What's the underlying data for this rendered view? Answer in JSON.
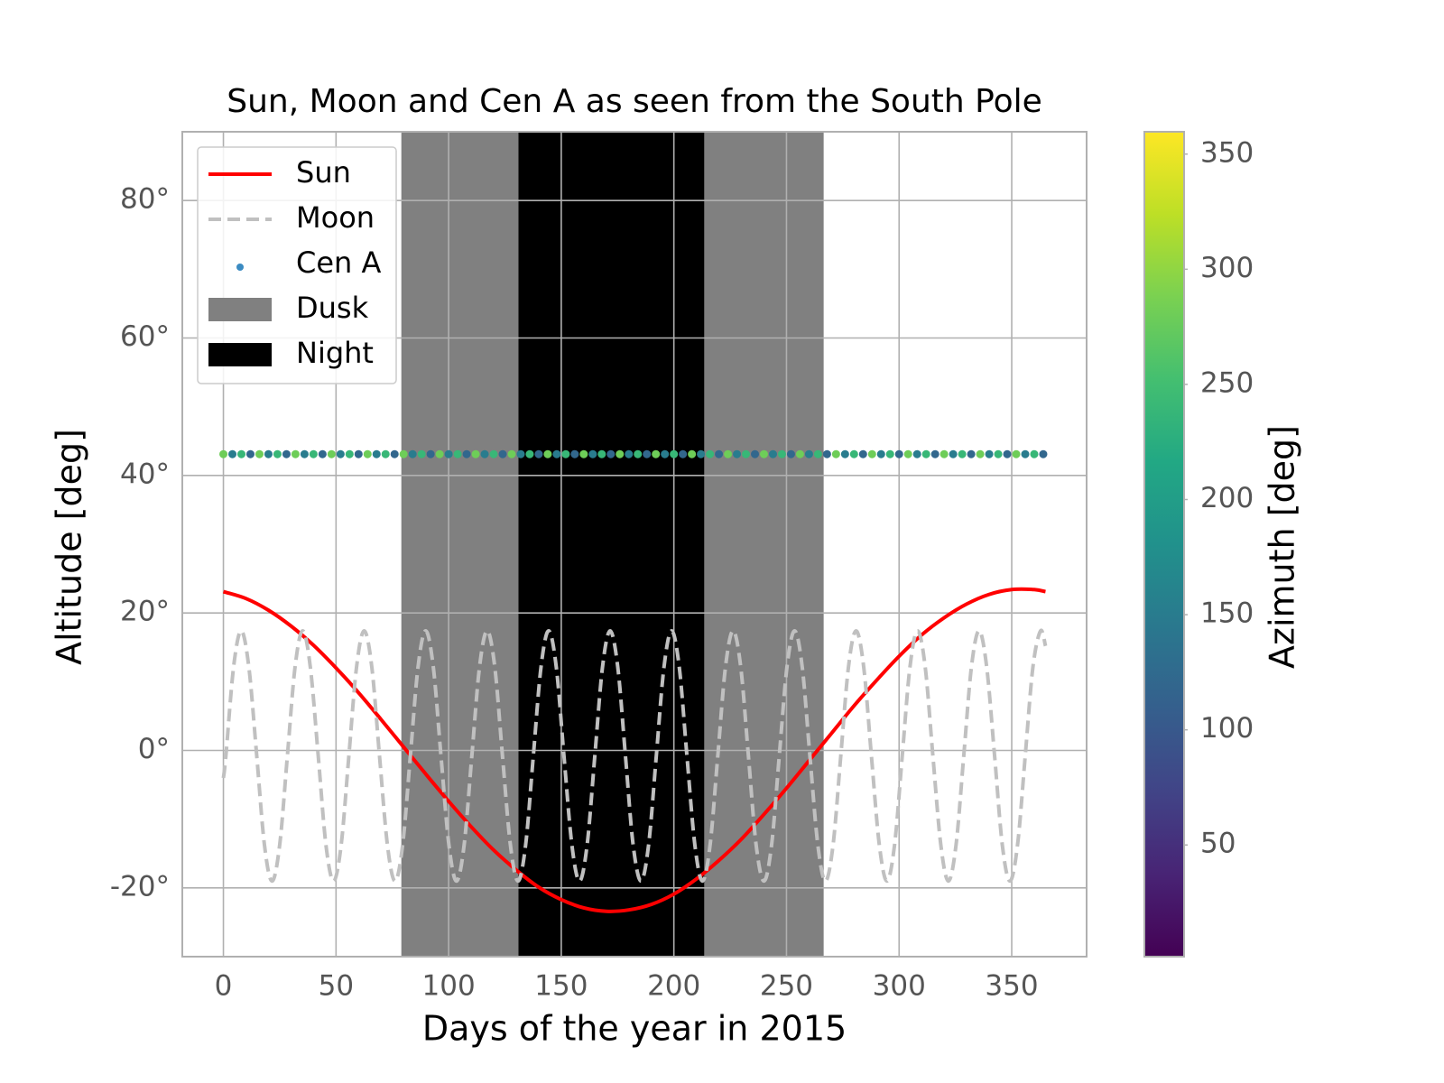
{
  "chart_data": {
    "type": "line",
    "title": "Sun, Moon and Cen A as seen from the South Pole",
    "xlabel": "Days of the year in 2015",
    "ylabel": "Altitude [deg]",
    "xlim": [
      -18.25,
      383.25
    ],
    "xticks": [
      0,
      50,
      100,
      150,
      200,
      250,
      300,
      350
    ],
    "ylim": [
      -30,
      90
    ],
    "yticks": [
      {
        "value": -20,
        "label": "-20°"
      },
      {
        "value": 0,
        "label": "0°"
      },
      {
        "value": 20,
        "label": "20°"
      },
      {
        "value": 40,
        "label": "40°"
      },
      {
        "value": 60,
        "label": "60°"
      },
      {
        "value": 80,
        "label": "80°"
      }
    ],
    "grid": true,
    "legend": "upper left",
    "regions": [
      {
        "name": "Dusk",
        "color": "#808080",
        "spans": [
          [
            79,
            131
          ],
          [
            213.5,
            266.5
          ]
        ]
      },
      {
        "name": "Night",
        "color": "#000000",
        "spans": [
          [
            131,
            213.5
          ]
        ]
      }
    ],
    "series": [
      {
        "name": "Sun",
        "color": "#ff0000",
        "style": "solid",
        "x": [
          0,
          10,
          20,
          30,
          40,
          50,
          60,
          70,
          80,
          90,
          100,
          110,
          120,
          130,
          140,
          150,
          160,
          170,
          180,
          190,
          200,
          210,
          220,
          230,
          240,
          250,
          260,
          270,
          280,
          290,
          300,
          310,
          320,
          330,
          340,
          350,
          360,
          365
        ],
        "values": [
          23.1,
          22.1,
          20.4,
          18.1,
          15.3,
          12.0,
          8.4,
          4.5,
          0.5,
          -3.5,
          -7.4,
          -11.1,
          -14.5,
          -17.4,
          -19.9,
          -21.7,
          -22.9,
          -23.4,
          -23.2,
          -22.4,
          -20.9,
          -18.7,
          -16.0,
          -12.9,
          -9.3,
          -5.5,
          -1.5,
          2.5,
          6.5,
          10.2,
          13.7,
          16.8,
          19.3,
          21.3,
          22.7,
          23.4,
          23.4,
          23.1
        ]
      },
      {
        "name": "Moon",
        "color": "#c0c0c0",
        "style": "dashed",
        "x": [
          0,
          1.1,
          4.5,
          7.9,
          11.3,
          14.8,
          18.2,
          21.6,
          25.0,
          28.4,
          31.8,
          35.2,
          38.6,
          42.1,
          45.5,
          48.9,
          52.3,
          55.7,
          59.1,
          62.5,
          65.9,
          69.3,
          72.8,
          76.2,
          79.6,
          83.0,
          86.4,
          89.8,
          93.2,
          96.6,
          100.1,
          103.5,
          106.9,
          110.3,
          113.7,
          117.1,
          120.5,
          123.9,
          127.4,
          130.8,
          134.2,
          137.6,
          141.0,
          144.4,
          147.8,
          151.2,
          154.7,
          158.1,
          161.5,
          164.9,
          168.3,
          171.7,
          175.1,
          178.5,
          181.9,
          185.4,
          188.8,
          192.2,
          195.6,
          199.0,
          202.4,
          205.8,
          209.3,
          212.7,
          216.1,
          219.5,
          222.9,
          226.3,
          229.7,
          233.1,
          236.5,
          240.0,
          243.4,
          246.8,
          250.2,
          253.6,
          257.0,
          260.4,
          263.9,
          267.3,
          270.7,
          274.1,
          277.5,
          280.9,
          284.3,
          287.7,
          291.2,
          294.6,
          298.0,
          301.4,
          304.8,
          308.2,
          311.6,
          315.0,
          318.5,
          321.9,
          325.3,
          328.7,
          332.1,
          335.5,
          338.9,
          342.4,
          345.8,
          349.2,
          352.6,
          356.0,
          359.4,
          362.8,
          365
        ],
        "values": [
          -4,
          -0.8,
          12.1,
          17.4,
          12.1,
          -0.8,
          -13.7,
          -19,
          -13.7,
          -0.8,
          12.1,
          17.4,
          12.1,
          -0.8,
          -13.7,
          -19,
          -13.7,
          -0.8,
          12.1,
          17.4,
          12.1,
          -0.8,
          -13.7,
          -19,
          -13.7,
          -0.8,
          12.1,
          17.4,
          12.1,
          -0.8,
          -13.7,
          -19,
          -13.7,
          -0.8,
          12.1,
          17.4,
          12.1,
          -0.8,
          -13.7,
          -19,
          -13.7,
          -0.8,
          12.1,
          17.4,
          12.1,
          -0.8,
          -13.7,
          -19,
          -13.7,
          -0.8,
          12.1,
          17.4,
          12.1,
          -0.8,
          -13.7,
          -19,
          -13.7,
          -0.8,
          12.1,
          17.4,
          12.1,
          -0.8,
          -13.7,
          -19,
          -13.7,
          -0.8,
          12.1,
          17.4,
          12.1,
          -0.8,
          -13.7,
          -19,
          -13.7,
          -0.8,
          12.1,
          17.4,
          12.1,
          -0.8,
          -13.7,
          -19,
          -13.7,
          -0.8,
          12.1,
          17.4,
          12.1,
          -0.8,
          -13.7,
          -19,
          -13.7,
          -0.8,
          12.1,
          17.4,
          12.1,
          -0.8,
          -13.7,
          -19,
          -13.7,
          -0.8,
          12.1,
          17.4,
          12.1,
          -0.8,
          -13.7,
          -19,
          -13.7,
          -0.8,
          12.1,
          17.4,
          15.2
        ]
      },
      {
        "name": "Cen A",
        "type": "scatter",
        "color": "#3b8bc2",
        "x": [
          0,
          4,
          8,
          12,
          16,
          20,
          24,
          28,
          32,
          36,
          40,
          44,
          48,
          52,
          56,
          60,
          64,
          68,
          72,
          76,
          80,
          84,
          88,
          92,
          96,
          100,
          104,
          108,
          112,
          116,
          120,
          124,
          128,
          132,
          136,
          140,
          144,
          148,
          152,
          156,
          160,
          164,
          168,
          172,
          176,
          180,
          184,
          188,
          192,
          196,
          200,
          204,
          208,
          212,
          216,
          220,
          224,
          228,
          232,
          236,
          240,
          244,
          248,
          252,
          256,
          260,
          264,
          268,
          272,
          276,
          280,
          284,
          288,
          292,
          296,
          300,
          304,
          308,
          312,
          316,
          320,
          324,
          328,
          332,
          336,
          340,
          344,
          348,
          352,
          356,
          360,
          364
        ],
        "values": [
          43.1,
          43.1,
          43.1,
          43.1,
          43.1,
          43.1,
          43.1,
          43.1,
          43.1,
          43.1,
          43.1,
          43.1,
          43.1,
          43.1,
          43.1,
          43.1,
          43.1,
          43.1,
          43.1,
          43.1,
          43.1,
          43.1,
          43.1,
          43.1,
          43.1,
          43.1,
          43.1,
          43.1,
          43.1,
          43.1,
          43.1,
          43.1,
          43.1,
          43.1,
          43.1,
          43.1,
          43.1,
          43.1,
          43.1,
          43.1,
          43.1,
          43.1,
          43.1,
          43.1,
          43.1,
          43.1,
          43.1,
          43.1,
          43.1,
          43.1,
          43.1,
          43.1,
          43.1,
          43.1,
          43.1,
          43.1,
          43.1,
          43.1,
          43.1,
          43.1,
          43.1,
          43.1,
          43.1,
          43.1,
          43.1,
          43.1,
          43.1,
          43.1,
          43.1,
          43.1,
          43.1,
          43.1,
          43.1,
          43.1,
          43.1,
          43.1,
          43.1,
          43.1,
          43.1,
          43.1,
          43.1,
          43.1,
          43.1,
          43.1,
          43.1,
          43.1,
          43.1,
          43.1,
          43.1,
          43.1,
          43.1,
          43.1
        ],
        "azimuth": [
          280,
          150,
          240,
          120,
          280,
          150,
          240,
          120,
          280,
          150,
          240,
          120,
          280,
          150,
          240,
          120,
          280,
          150,
          240,
          120,
          280,
          150,
          240,
          120,
          280,
          150,
          240,
          120,
          280,
          150,
          240,
          120,
          280,
          150,
          240,
          120,
          280,
          150,
          240,
          120,
          280,
          150,
          240,
          120,
          280,
          150,
          240,
          120,
          280,
          150,
          240,
          120,
          280,
          150,
          240,
          120,
          280,
          150,
          240,
          120,
          280,
          150,
          240,
          120,
          280,
          150,
          240,
          120,
          280,
          150,
          240,
          120,
          280,
          150,
          240,
          120,
          280,
          150,
          240,
          120,
          280,
          150,
          240,
          120,
          280,
          150,
          240,
          120,
          280,
          150,
          240,
          120
        ]
      }
    ],
    "colorbar": {
      "label": "Azimuth [deg]",
      "colormap": "viridis",
      "lim": [
        1.5,
        359.7
      ],
      "ticks": [
        50,
        100,
        150,
        200,
        250,
        300,
        350
      ]
    }
  }
}
